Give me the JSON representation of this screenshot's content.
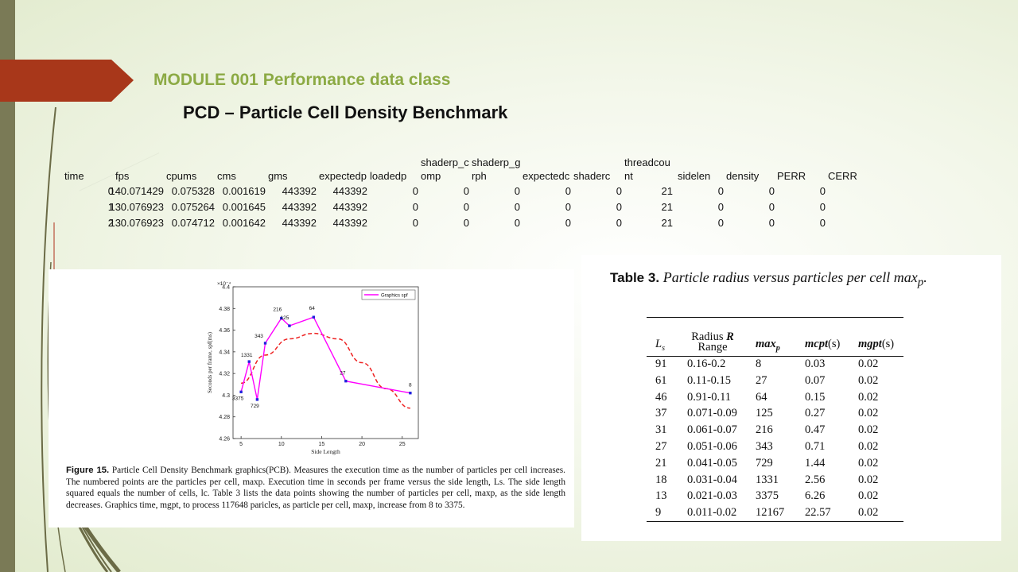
{
  "slide": {
    "module_title": "MODULE 001 Performance data class",
    "subtitle": "PCD – Particle Cell Density Benchmark"
  },
  "perf_table": {
    "headers": [
      "time",
      "fps",
      "cpums",
      "cms",
      "gms",
      "expectedp",
      "loadedp",
      "shaderp_c\nomp",
      "shaderp_g\nrph",
      "expectedc",
      "shaderc",
      "threadcou\nnt",
      "sidelen",
      "density",
      "PERR",
      "CERR"
    ],
    "rows": [
      [
        "0",
        "14",
        "0.071429",
        "0.075328",
        "0.001619",
        "443392",
        "443392",
        "0",
        "0",
        "0",
        "0",
        "0",
        "21",
        "0",
        "0",
        "0"
      ],
      [
        "1",
        "13",
        "0.076923",
        "0.075264",
        "0.001645",
        "443392",
        "443392",
        "0",
        "0",
        "0",
        "0",
        "0",
        "21",
        "0",
        "0",
        "0"
      ],
      [
        "2",
        "13",
        "0.076923",
        "0.074712",
        "0.001642",
        "443392",
        "443392",
        "0",
        "0",
        "0",
        "0",
        "0",
        "21",
        "0",
        "0",
        "0"
      ]
    ]
  },
  "figure": {
    "caption_label": "Figure 15.",
    "caption_text": "Particle Cell Density Benchmark graphics(PCB). Measures the execution time as the number of particles per cell increases. The numbered points are the particles per cell, maxp. Execution time in seconds per frame versus the side length, Ls. The side length squared equals the number of cells, lc. Table 3 lists the data points showing the number of particles per cell, maxp, as the side length decreases. Graphics time, mgpt, to process 117648 paricles, as particle per cell, maxp, increase from 8 to 3375."
  },
  "chart_data": {
    "type": "line",
    "xlabel": "Side Length",
    "ylabel": "Seconds per frame, spf(ms)",
    "y_exponent_label": "×10⁻⁴",
    "xlim": [
      4,
      27
    ],
    "ylim": [
      4.26,
      4.4
    ],
    "x_ticks": [
      5,
      10,
      15,
      20,
      25
    ],
    "y_ticks": [
      4.26,
      4.28,
      4.3,
      4.32,
      4.34,
      4.36,
      4.38,
      4.4
    ],
    "y_tick_labels": [
      "4.26",
      "4.28",
      "4.3",
      "4.32",
      "4.34",
      "4.36",
      "4.38",
      "4.4"
    ],
    "grid": false,
    "legend_position": "top-right",
    "series": [
      {
        "name": "Graphics spf",
        "color": "#ff00ff",
        "marker_color": "#2222dd",
        "style": "solid",
        "x": [
          5,
          6,
          7,
          8,
          10,
          11,
          14,
          18,
          26
        ],
        "y": [
          4.303,
          4.331,
          4.296,
          4.348,
          4.371,
          4.364,
          4.372,
          4.313,
          4.302
        ],
        "labels": [
          "3375",
          "1331",
          "729",
          "343",
          "216",
          "125",
          "64",
          "27",
          "8"
        ]
      },
      {
        "color": "#ee2222",
        "style": "dashed",
        "x": [
          5,
          8,
          11,
          14,
          17,
          20,
          23,
          26
        ],
        "y": [
          4.311,
          4.337,
          4.352,
          4.357,
          4.352,
          4.33,
          4.306,
          4.288
        ]
      }
    ]
  },
  "table3": {
    "label": "Table 3.",
    "description": "Particle radius versus particles per cell max",
    "description_sub": "p",
    "description_end": ".",
    "headers": {
      "ls": "L",
      "ls_sub": "s",
      "radius_line1": "Radius ",
      "radius_r": "R",
      "radius_line2": "Range",
      "maxp": "max",
      "maxp_sub": "p",
      "mcpt": "mcpt",
      "mcpt_unit": "(s)",
      "mgpt": "mgpt",
      "mgpt_unit": "(s)"
    },
    "rows": [
      [
        "91",
        "0.16-0.2",
        "8",
        "0.03",
        "0.02"
      ],
      [
        "61",
        "0.11-0.15",
        "27",
        "0.07",
        "0.02"
      ],
      [
        "46",
        "0.91-0.11",
        "64",
        "0.15",
        "0.02"
      ],
      [
        "37",
        "0.071-0.09",
        "125",
        "0.27",
        "0.02"
      ],
      [
        "31",
        "0.061-0.07",
        "216",
        "0.47",
        "0.02"
      ],
      [
        "27",
        "0.051-0.06",
        "343",
        "0.71",
        "0.02"
      ],
      [
        "21",
        "0.041-0.05",
        "729",
        "1.44",
        "0.02"
      ],
      [
        "18",
        "0.031-0.04",
        "1331",
        "2.56",
        "0.02"
      ],
      [
        "13",
        "0.021-0.03",
        "3375",
        "6.26",
        "0.02"
      ],
      [
        "9",
        "0.011-0.02",
        "12167",
        "22.57",
        "0.02"
      ]
    ]
  },
  "colors": {
    "accent_tab": "#a8371a",
    "module_title": "#8caa44",
    "left_bar": "#7a7a56"
  }
}
